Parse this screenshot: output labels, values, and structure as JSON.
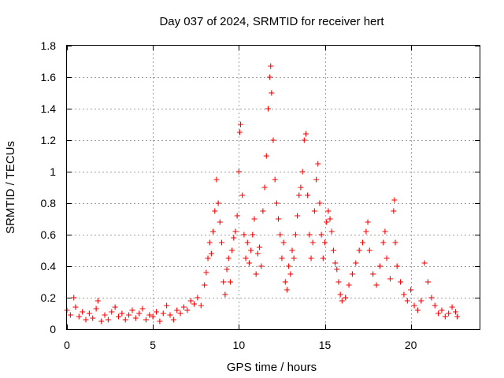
{
  "chart_data": {
    "type": "scatter",
    "title": "Day 037 of 2024, SRMTID for receiver hert",
    "xlabel": "GPS time / hours",
    "ylabel": "SRMTID / TECUs",
    "xlim": [
      0,
      24
    ],
    "ylim": [
      0,
      1.8
    ],
    "xticks": [
      0,
      5,
      10,
      15,
      20
    ],
    "yticks": [
      0,
      0.2,
      0.4,
      0.6,
      0.8,
      1,
      1.2,
      1.4,
      1.6,
      1.8
    ],
    "ytick_labels": [
      "0",
      "0.2",
      "0.4",
      "0.6",
      "0.8",
      "1",
      "1.2",
      "1.4",
      "1.6",
      "1.8"
    ],
    "grid": true,
    "marker": "+",
    "color": "#ff0000",
    "series": [
      {
        "name": "SRMTID",
        "points": [
          [
            0.0,
            0.12
          ],
          [
            0.2,
            0.09
          ],
          [
            0.4,
            0.2
          ],
          [
            0.5,
            0.14
          ],
          [
            0.7,
            0.08
          ],
          [
            0.9,
            0.11
          ],
          [
            1.1,
            0.06
          ],
          [
            1.3,
            0.1
          ],
          [
            1.5,
            0.07
          ],
          [
            1.7,
            0.13
          ],
          [
            1.8,
            0.18
          ],
          [
            2.0,
            0.05
          ],
          [
            2.2,
            0.09
          ],
          [
            2.4,
            0.06
          ],
          [
            2.6,
            0.11
          ],
          [
            2.8,
            0.14
          ],
          [
            3.0,
            0.08
          ],
          [
            3.2,
            0.1
          ],
          [
            3.4,
            0.06
          ],
          [
            3.6,
            0.09
          ],
          [
            3.8,
            0.12
          ],
          [
            4.0,
            0.07
          ],
          [
            4.2,
            0.1
          ],
          [
            4.4,
            0.13
          ],
          [
            4.6,
            0.06
          ],
          [
            4.8,
            0.09
          ],
          [
            5.0,
            0.08
          ],
          [
            5.2,
            0.11
          ],
          [
            5.4,
            0.05
          ],
          [
            5.6,
            0.1
          ],
          [
            5.8,
            0.15
          ],
          [
            6.0,
            0.09
          ],
          [
            6.2,
            0.06
          ],
          [
            6.4,
            0.12
          ],
          [
            6.6,
            0.1
          ],
          [
            6.8,
            0.14
          ],
          [
            7.0,
            0.12
          ],
          [
            7.2,
            0.18
          ],
          [
            7.4,
            0.16
          ],
          [
            7.6,
            0.2
          ],
          [
            7.8,
            0.15
          ],
          [
            8.0,
            0.28
          ],
          [
            8.1,
            0.36
          ],
          [
            8.2,
            0.45
          ],
          [
            8.3,
            0.55
          ],
          [
            8.4,
            0.48
          ],
          [
            8.5,
            0.62
          ],
          [
            8.6,
            0.75
          ],
          [
            8.7,
            0.95
          ],
          [
            8.8,
            0.8
          ],
          [
            8.9,
            0.68
          ],
          [
            9.0,
            0.55
          ],
          [
            9.1,
            0.3
          ],
          [
            9.2,
            0.22
          ],
          [
            9.3,
            0.38
          ],
          [
            9.4,
            0.45
          ],
          [
            9.5,
            0.3
          ],
          [
            9.6,
            0.5
          ],
          [
            9.7,
            0.58
          ],
          [
            9.8,
            0.62
          ],
          [
            9.9,
            0.72
          ],
          [
            10.0,
            1.0
          ],
          [
            10.05,
            1.25
          ],
          [
            10.1,
            1.3
          ],
          [
            10.2,
            0.85
          ],
          [
            10.3,
            0.6
          ],
          [
            10.4,
            0.45
          ],
          [
            10.5,
            0.55
          ],
          [
            10.6,
            0.42
          ],
          [
            10.7,
            0.5
          ],
          [
            10.8,
            0.6
          ],
          [
            10.9,
            0.7
          ],
          [
            11.0,
            0.35
          ],
          [
            11.1,
            0.48
          ],
          [
            11.2,
            0.52
          ],
          [
            11.3,
            0.4
          ],
          [
            11.4,
            0.75
          ],
          [
            11.5,
            0.9
          ],
          [
            11.6,
            1.1
          ],
          [
            11.7,
            1.4
          ],
          [
            11.8,
            1.6
          ],
          [
            11.85,
            1.67
          ],
          [
            11.9,
            1.5
          ],
          [
            12.0,
            1.2
          ],
          [
            12.1,
            0.95
          ],
          [
            12.2,
            0.8
          ],
          [
            12.3,
            0.7
          ],
          [
            12.4,
            0.6
          ],
          [
            12.5,
            0.45
          ],
          [
            12.6,
            0.55
          ],
          [
            12.7,
            0.3
          ],
          [
            12.8,
            0.25
          ],
          [
            12.9,
            0.4
          ],
          [
            13.0,
            0.35
          ],
          [
            13.1,
            0.5
          ],
          [
            13.2,
            0.45
          ],
          [
            13.3,
            0.6
          ],
          [
            13.4,
            0.72
          ],
          [
            13.5,
            0.85
          ],
          [
            13.6,
            0.9
          ],
          [
            13.7,
            1.0
          ],
          [
            13.8,
            1.2
          ],
          [
            13.9,
            1.24
          ],
          [
            14.0,
            0.85
          ],
          [
            14.1,
            0.6
          ],
          [
            14.2,
            0.45
          ],
          [
            14.3,
            0.55
          ],
          [
            14.4,
            0.75
          ],
          [
            14.5,
            0.95
          ],
          [
            14.6,
            1.05
          ],
          [
            14.7,
            0.8
          ],
          [
            14.8,
            0.6
          ],
          [
            14.9,
            0.45
          ],
          [
            15.0,
            0.55
          ],
          [
            15.1,
            0.68
          ],
          [
            15.2,
            0.75
          ],
          [
            15.3,
            0.7
          ],
          [
            15.4,
            0.62
          ],
          [
            15.5,
            0.5
          ],
          [
            15.6,
            0.42
          ],
          [
            15.7,
            0.38
          ],
          [
            15.8,
            0.3
          ],
          [
            15.9,
            0.22
          ],
          [
            16.0,
            0.18
          ],
          [
            16.2,
            0.2
          ],
          [
            16.4,
            0.28
          ],
          [
            16.6,
            0.35
          ],
          [
            16.8,
            0.42
          ],
          [
            17.0,
            0.5
          ],
          [
            17.2,
            0.55
          ],
          [
            17.4,
            0.62
          ],
          [
            17.5,
            0.68
          ],
          [
            17.6,
            0.5
          ],
          [
            17.8,
            0.35
          ],
          [
            18.0,
            0.28
          ],
          [
            18.2,
            0.4
          ],
          [
            18.4,
            0.55
          ],
          [
            18.5,
            0.62
          ],
          [
            18.6,
            0.45
          ],
          [
            18.8,
            0.32
          ],
          [
            19.0,
            0.75
          ],
          [
            19.05,
            0.82
          ],
          [
            19.1,
            0.55
          ],
          [
            19.2,
            0.4
          ],
          [
            19.4,
            0.3
          ],
          [
            19.6,
            0.22
          ],
          [
            19.8,
            0.18
          ],
          [
            20.0,
            0.25
          ],
          [
            20.2,
            0.15
          ],
          [
            20.4,
            0.12
          ],
          [
            20.6,
            0.18
          ],
          [
            20.8,
            0.42
          ],
          [
            21.0,
            0.3
          ],
          [
            21.2,
            0.2
          ],
          [
            21.4,
            0.15
          ],
          [
            21.6,
            0.1
          ],
          [
            21.8,
            0.12
          ],
          [
            22.0,
            0.08
          ],
          [
            22.2,
            0.1
          ],
          [
            22.4,
            0.14
          ],
          [
            22.6,
            0.11
          ],
          [
            22.7,
            0.08
          ]
        ]
      }
    ]
  }
}
